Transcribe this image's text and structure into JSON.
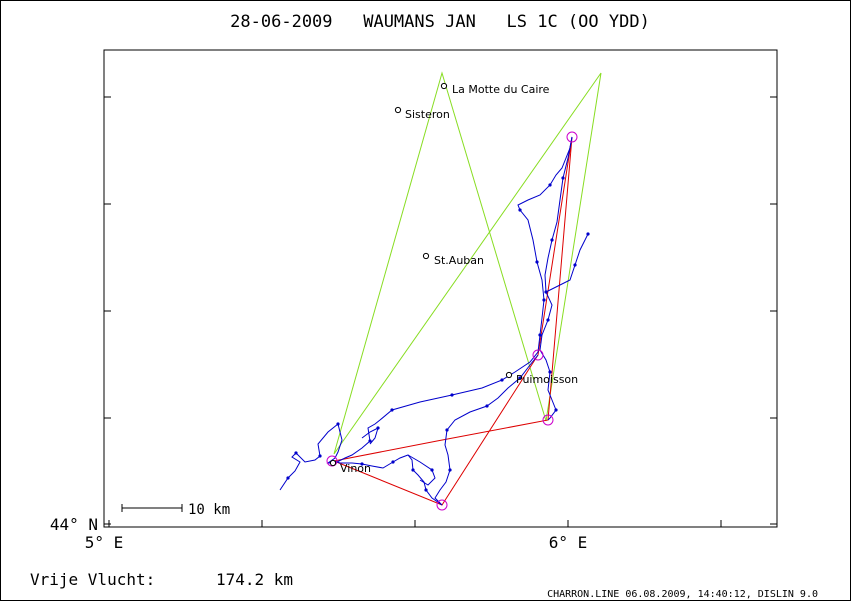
{
  "title": "28-06-2009   WAUMANS JAN   LS 1C (OO YDD)",
  "axes": {
    "x_ticks": [
      "5° E",
      "6° E"
    ],
    "y_ticks": [
      "44° N"
    ]
  },
  "scale_bar": {
    "label": "10 km"
  },
  "places": [
    {
      "name": "La Motte du Caire"
    },
    {
      "name": "Sisteron"
    },
    {
      "name": "St.Auban"
    },
    {
      "name": "Puimoisson"
    },
    {
      "name": "Vinon"
    }
  ],
  "footer": {
    "distance_label": "Vrije Vlucht:",
    "distance_value": "174.2 km",
    "credit": "CHARRON.LINE 06.08.2009, 14:40:12, DISLIN 9.0"
  },
  "colors": {
    "frame": "#000000",
    "track": "#0000cc",
    "task": "#dd0000",
    "free_flight": "#88dd22",
    "turnpoint": "#cc00cc"
  }
}
